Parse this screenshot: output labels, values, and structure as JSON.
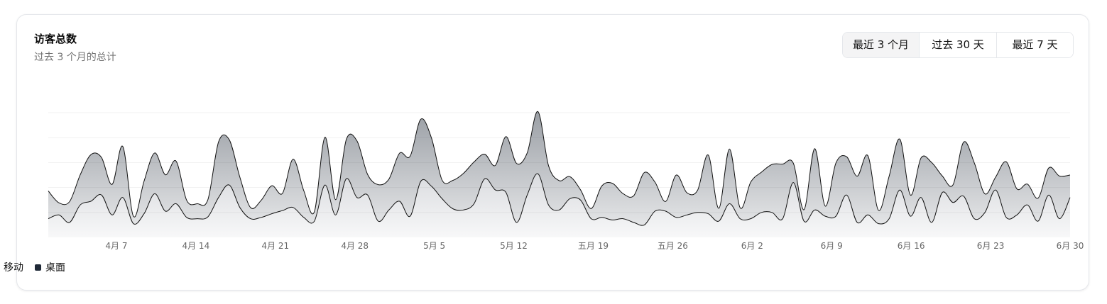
{
  "card": {
    "title": "访客总数",
    "subtitle": "过去 3 个月的总计"
  },
  "range_toggle": {
    "options": [
      "最近 3 个月",
      "过去 30 天",
      "最近 7 天"
    ],
    "active_index": 0
  },
  "colors": {
    "desktop": "#1f2937",
    "mobile": "#6b7280",
    "grid": "#f1f1f1",
    "tick_text": "#666666"
  },
  "chart_data": {
    "type": "area",
    "title": "",
    "xlabel": "",
    "ylabel": "",
    "ylim": [
      0,
      1000
    ],
    "grid": true,
    "stacked": true,
    "legend_position": "bottom-left",
    "x_range": [
      "2024-04-01",
      "2024-06-30"
    ],
    "x_ticks": [
      {
        "date": "2024-04-07",
        "label": "4月 7"
      },
      {
        "date": "2024-04-14",
        "label": "4月 14"
      },
      {
        "date": "2024-04-21",
        "label": "4月 21"
      },
      {
        "date": "2024-04-28",
        "label": "4月 28"
      },
      {
        "date": "2024-05-05",
        "label": "5月 5"
      },
      {
        "date": "2024-05-12",
        "label": "5月 12"
      },
      {
        "date": "2024-05-19",
        "label": "五月 19"
      },
      {
        "date": "2024-05-26",
        "label": "五月 26"
      },
      {
        "date": "2024-06-02",
        "label": "6月 2"
      },
      {
        "date": "2024-06-09",
        "label": "6月 9"
      },
      {
        "date": "2024-06-16",
        "label": "6月 16"
      },
      {
        "date": "2024-06-23",
        "label": "6月 23"
      },
      {
        "date": "2024-06-30",
        "label": "6月 30"
      }
    ],
    "series": [
      {
        "name": "移动",
        "values": [
          150,
          180,
          120,
          260,
          290,
          340,
          180,
          320,
          110,
          190,
          350,
          210,
          270,
          160,
          150,
          165,
          320,
          420,
          240,
          150,
          160,
          190,
          215,
          240,
          160,
          130,
          420,
          180,
          470,
          320,
          340,
          130,
          220,
          290,
          170,
          450,
          410,
          310,
          230,
          220,
          270,
          470,
          380,
          360,
          120,
          340,
          510,
          260,
          220,
          310,
          300,
          150,
          160,
          140,
          150,
          120,
          100,
          210,
          210,
          160,
          180,
          200,
          190,
          130,
          270,
          150,
          150,
          200,
          200,
          150,
          440,
          130,
          220,
          170,
          170,
          340,
          120,
          180,
          110,
          150,
          380,
          170,
          320,
          120,
          360,
          280,
          330,
          150,
          200,
          380,
          160,
          180,
          260,
          130,
          340,
          150,
          320
        ]
      },
      {
        "name": "桌面",
        "values": [
          222,
          97,
          167,
          242,
          373,
          301,
          245,
          409,
          59,
          261,
          327,
          292,
          342,
          137,
          120,
          138,
          446,
          364,
          243,
          89,
          137,
          224,
          138,
          387,
          215,
          75,
          383,
          122,
          315,
          454,
          165,
          293,
          247,
          385,
          481,
          498,
          388,
          149,
          227,
          293,
          335,
          197,
          197,
          448,
          473,
          338,
          499,
          315,
          235,
          177,
          82,
          81,
          252,
          294,
          201,
          213,
          420,
          233,
          78,
          340,
          178,
          178,
          470,
          103,
          439,
          88,
          294,
          323,
          385,
          438,
          155,
          92,
          492,
          81,
          426,
          307,
          371,
          475,
          107,
          341,
          408,
          169,
          317,
          480,
          132,
          141,
          434,
          448,
          149,
          103,
          446,
          209,
          167,
          185,
          217,
          342,
          180
        ]
      }
    ]
  }
}
